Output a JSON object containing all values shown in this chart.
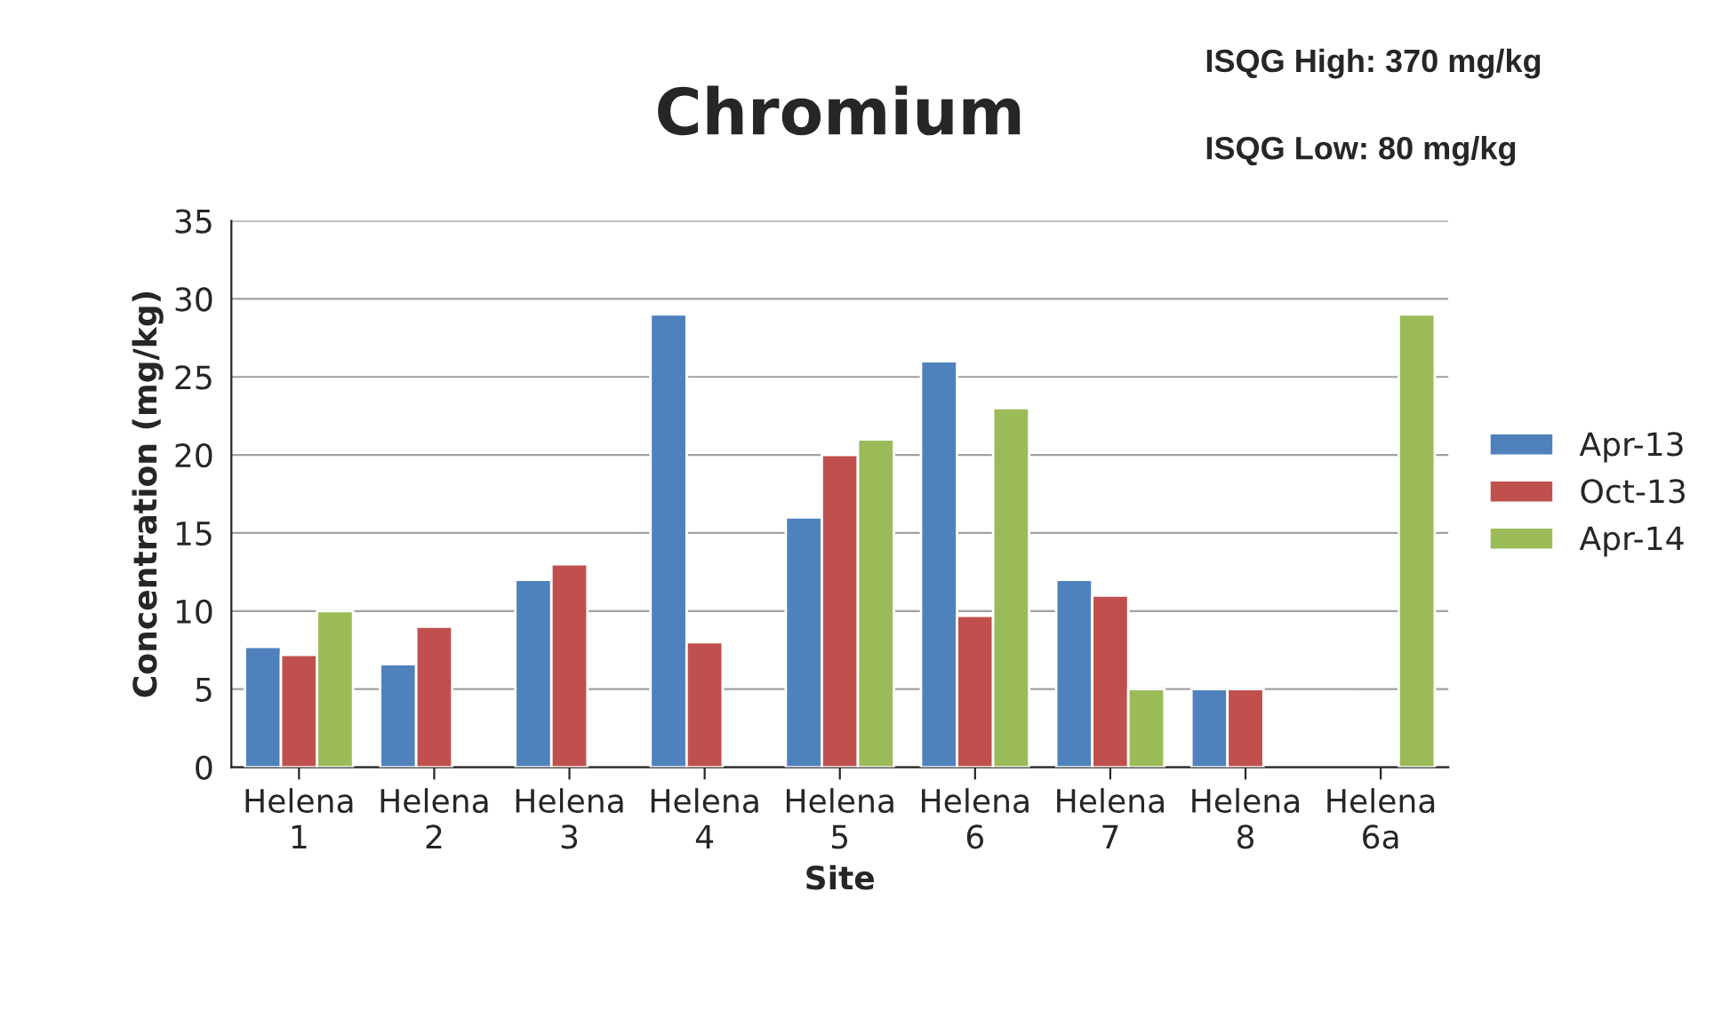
{
  "chart_data": {
    "type": "bar",
    "title": "Chromium",
    "xlabel": "Site",
    "ylabel": "Concentration (mg/kg)",
    "categories": [
      "Helena\n1",
      "Helena\n2",
      "Helena\n3",
      "Helena\n4",
      "Helena\n5",
      "Helena\n6",
      "Helena\n7",
      "Helena\n8",
      "Helena\n6a"
    ],
    "series": [
      {
        "name": "Apr-13",
        "color": "#4f81bd",
        "values": [
          7.7,
          6.6,
          12,
          29,
          16,
          26,
          12,
          5,
          null
        ]
      },
      {
        "name": "Oct-13",
        "color": "#c0504d",
        "values": [
          7.2,
          9,
          13,
          8,
          20,
          9.7,
          11,
          5,
          null
        ]
      },
      {
        "name": "Apr-14",
        "color": "#9bbb59",
        "values": [
          10,
          null,
          null,
          null,
          21,
          23,
          5,
          null,
          29
        ]
      }
    ],
    "ylim": [
      0,
      35
    ],
    "yticks": [
      0,
      5,
      10,
      15,
      20,
      25,
      30,
      35
    ],
    "grid": "y",
    "legend": "right",
    "annotations": [
      "ISQG High: 370 mg/kg",
      "ISQG Low: 80 mg/kg"
    ]
  }
}
